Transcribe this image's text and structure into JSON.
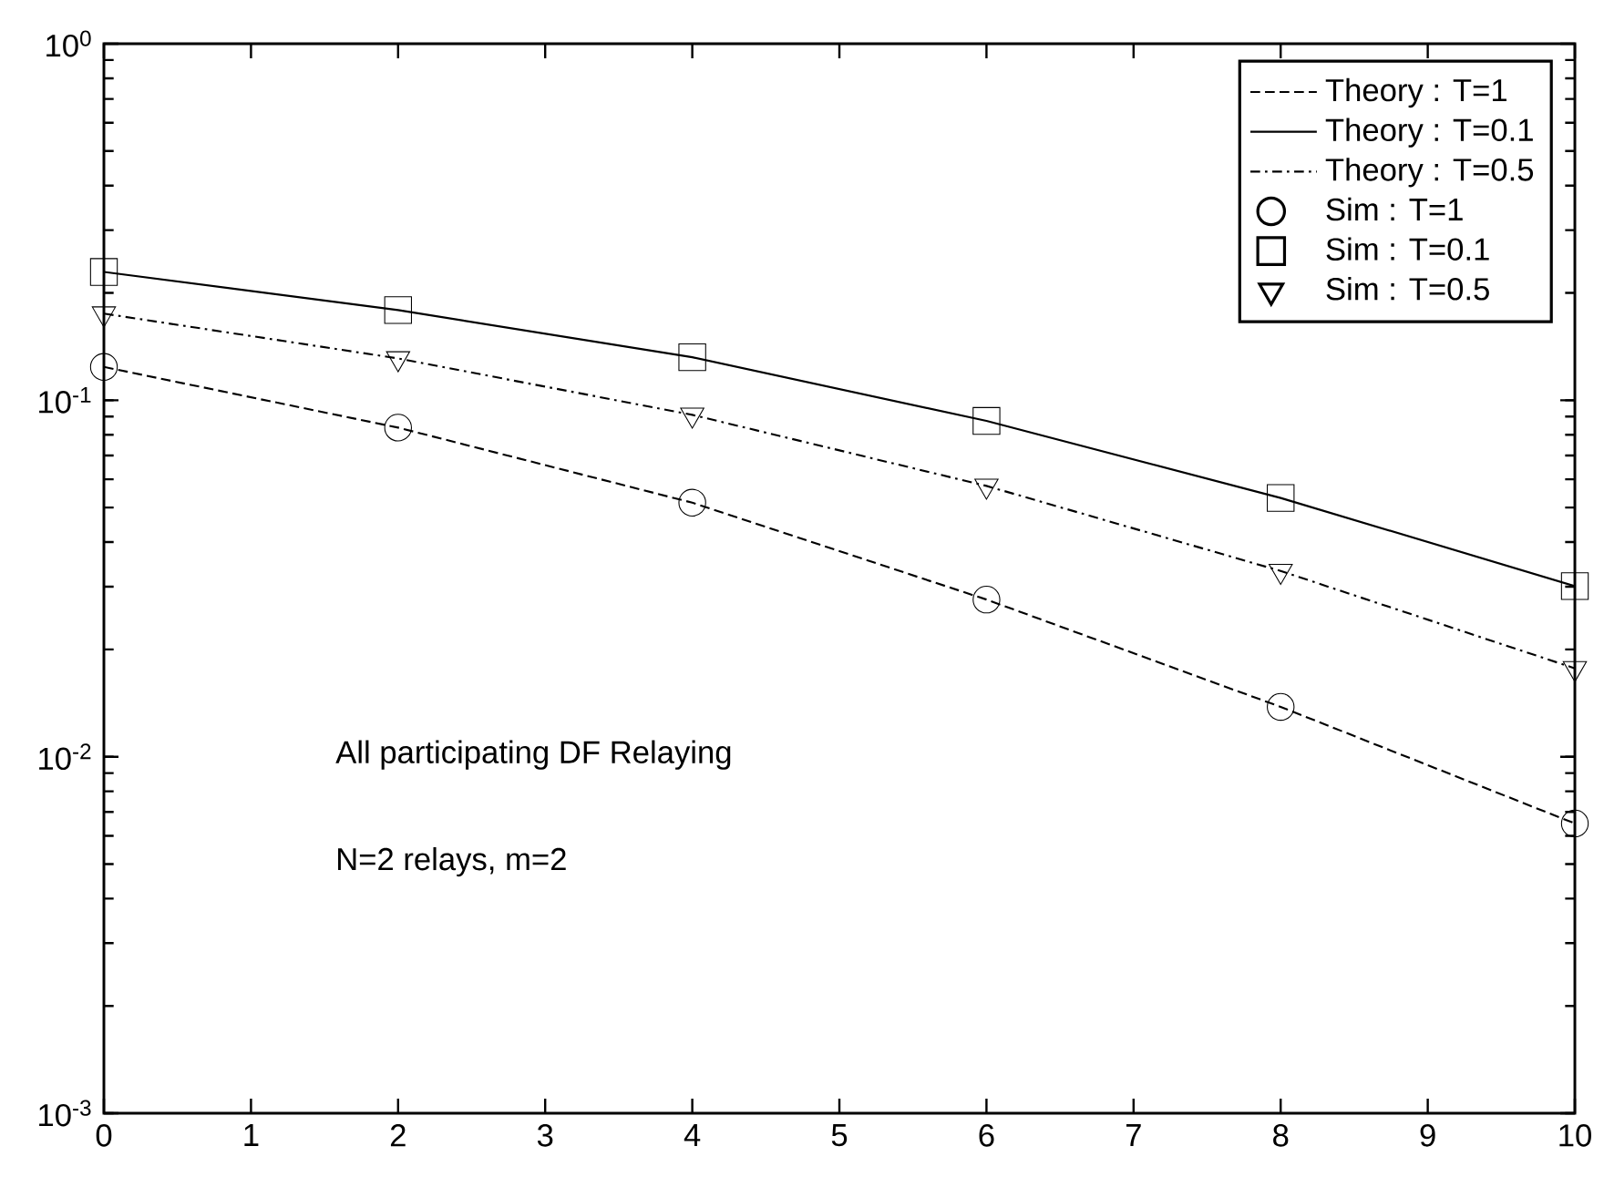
{
  "chart_data": {
    "type": "line",
    "x": [
      0,
      2,
      4,
      6,
      8,
      10
    ],
    "series": [
      {
        "name": "Theory : T=1",
        "type": "line",
        "color": "#000000",
        "line_style": "dashed",
        "marker": "none",
        "values": [
          0.124,
          0.0838,
          0.0516,
          0.0276,
          0.0138,
          0.0065
        ]
      },
      {
        "name": "Theory : T=0.1",
        "type": "line",
        "color": "#000000",
        "line_style": "solid",
        "marker": "none",
        "values": [
          0.229,
          0.179,
          0.132,
          0.0875,
          0.0532,
          0.0301
        ]
      },
      {
        "name": "Theory : T=0.5",
        "type": "line",
        "color": "#000000",
        "line_style": "dashdot",
        "marker": "none",
        "values": [
          0.175,
          0.131,
          0.091,
          0.0575,
          0.0332,
          0.0177
        ]
      },
      {
        "name": "Sim : T=1",
        "type": "scatter",
        "color": "#000000",
        "marker": "circle",
        "values": [
          0.124,
          0.0838,
          0.0516,
          0.0276,
          0.0138,
          0.0065
        ]
      },
      {
        "name": "Sim : T=0.1",
        "type": "scatter",
        "color": "#000000",
        "marker": "square",
        "values": [
          0.229,
          0.179,
          0.132,
          0.0875,
          0.0532,
          0.0301
        ]
      },
      {
        "name": "Sim : T=0.5",
        "type": "scatter",
        "color": "#000000",
        "marker": "triangle",
        "values": [
          0.175,
          0.131,
          0.091,
          0.0575,
          0.0332,
          0.0177
        ]
      }
    ],
    "log": "y",
    "xlim": [
      0,
      10
    ],
    "xticks": [
      0,
      1,
      2,
      3,
      4,
      5,
      6,
      7,
      8,
      9,
      10
    ],
    "ylim": [
      0.001,
      1
    ],
    "yticks": [
      {
        "value": 0.001,
        "label": "10$^{-3}$"
      },
      {
        "value": 0.01,
        "label": "10$^{-2}$"
      },
      {
        "value": 0.1,
        "label": "10$^{-1}$"
      },
      {
        "value": 1,
        "label": "10$^{0}$"
      }
    ],
    "grid": false,
    "legend": "top right",
    "annotations": [
      "All participating DF Relaying",
      "N=2 relays, m=2"
    ]
  }
}
